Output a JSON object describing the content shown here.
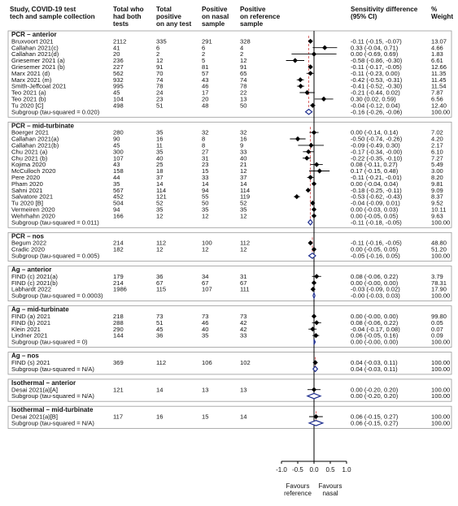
{
  "chart_data": {
    "type": "forest",
    "headers": {
      "study": [
        "Study, COVID-19 test",
        "tech and sample collection"
      ],
      "total_both": [
        "Total who",
        "had both",
        "tests"
      ],
      "total_positive": [
        "Total",
        "positive",
        "on any test"
      ],
      "positive_nasal": [
        "Positive",
        "on nasal",
        "sample"
      ],
      "positive_reference": [
        "Positive",
        "on reference",
        "sample"
      ],
      "sensitivity": [
        "Sensitivity difference",
        "(95% CI)"
      ],
      "weight": [
        "%",
        "Weight"
      ]
    },
    "x_axis": {
      "ticks": [
        -1.0,
        -0.5,
        0.0,
        0.5,
        1.0
      ],
      "tick_labels": [
        "-1.0",
        "-0.5",
        "0.0",
        "0.5",
        "1.0"
      ],
      "xlim": [
        -1.0,
        1.0
      ]
    },
    "favours_left": [
      "Favours",
      "reference"
    ],
    "favours_right": [
      "Favours",
      "nasal"
    ],
    "groups": [
      {
        "title": "PCR – anterior",
        "rows": [
          {
            "study": "Bruxvoort 2021",
            "n": "2112",
            "pos_any": "335",
            "pos_nasal": "291",
            "pos_ref": "328",
            "est": -0.11,
            "lo": -0.15,
            "hi": -0.07,
            "ci_text": "-0.11 (-0.15, -0.07)",
            "weight": "13.07"
          },
          {
            "study": "Callahan 2021(c)",
            "n": "41",
            "pos_any": "6",
            "pos_nasal": "6",
            "pos_ref": "4",
            "est": 0.33,
            "lo": -0.04,
            "hi": 0.71,
            "ci_text": "0.33 (-0.04, 0.71)",
            "weight": "4.66"
          },
          {
            "study": "Callahan 2021(d)",
            "n": "20",
            "pos_any": "2",
            "pos_nasal": "2",
            "pos_ref": "2",
            "est": 0.0,
            "lo": -0.69,
            "hi": 0.69,
            "ci_text": "0.00 (-0.69, 0.69)",
            "weight": "1.83"
          },
          {
            "study": "Griesemer 2021 (a)",
            "n": "236",
            "pos_any": "12",
            "pos_nasal": "5",
            "pos_ref": "12",
            "est": -0.58,
            "lo": -0.86,
            "hi": -0.3,
            "ci_text": "-0.58 (-0.86, -0.30)",
            "weight": "6.61"
          },
          {
            "study": "Griesemer 2021 (b)",
            "n": "227",
            "pos_any": "91",
            "pos_nasal": "81",
            "pos_ref": "91",
            "est": -0.11,
            "lo": -0.17,
            "hi": -0.05,
            "ci_text": "-0.11 (-0.17, -0.05)",
            "weight": "12.66"
          },
          {
            "study": "Marx 2021 (d)",
            "n": "562",
            "pos_any": "70",
            "pos_nasal": "57",
            "pos_ref": "65",
            "est": -0.11,
            "lo": -0.23,
            "hi": 0.0,
            "ci_text": "-0.11 (-0.23, 0.00)",
            "weight": "11.35"
          },
          {
            "study": "Marx 2021 (m)",
            "n": "932",
            "pos_any": "74",
            "pos_nasal": "43",
            "pos_ref": "74",
            "est": -0.42,
            "lo": -0.53,
            "hi": -0.31,
            "ci_text": "-0.42 (-0.53, -0.31)",
            "weight": "11.45"
          },
          {
            "study": "Smith-Jeffcoat 2021",
            "n": "995",
            "pos_any": "78",
            "pos_nasal": "46",
            "pos_ref": "78",
            "est": -0.41,
            "lo": -0.52,
            "hi": -0.3,
            "ci_text": "-0.41 (-0.52, -0.30)",
            "weight": "11.54"
          },
          {
            "study": "Teo 2021 (a)",
            "n": "45",
            "pos_any": "24",
            "pos_nasal": "17",
            "pos_ref": "22",
            "est": -0.21,
            "lo": -0.44,
            "hi": 0.02,
            "ci_text": "-0.21 (-0.44, 0.02)",
            "weight": "7.87"
          },
          {
            "study": "Teo 2021 (b)",
            "n": "104",
            "pos_any": "23",
            "pos_nasal": "20",
            "pos_ref": "13",
            "est": 0.3,
            "lo": 0.02,
            "hi": 0.59,
            "ci_text": "0.30 (0.02, 0.59)",
            "weight": "6.56"
          },
          {
            "study": "Tu 2020 [C]",
            "n": "498",
            "pos_any": "51",
            "pos_nasal": "48",
            "pos_ref": "50",
            "est": -0.04,
            "lo": -0.12,
            "hi": 0.04,
            "ci_text": "-0.04 (-0.12, 0.04)",
            "weight": "12.40"
          }
        ],
        "subgroup": {
          "label": "Subgroup (tau-squared = 0.020)",
          "est": -0.16,
          "lo": -0.26,
          "hi": -0.06,
          "ci_text": "-0.16 (-0.26, -0.06)",
          "weight": "100.00"
        }
      },
      {
        "title": "PCR – mid-turbinate",
        "rows": [
          {
            "study": "Boerger 2021",
            "n": "280",
            "pos_any": "35",
            "pos_nasal": "32",
            "pos_ref": "32",
            "est": 0.0,
            "lo": -0.14,
            "hi": 0.14,
            "ci_text": "0.00 (-0.14, 0.14)",
            "weight": "7.02"
          },
          {
            "study": "Callahan 2021(a)",
            "n": "90",
            "pos_any": "16",
            "pos_nasal": "8",
            "pos_ref": "16",
            "est": -0.5,
            "lo": -0.74,
            "hi": -0.26,
            "ci_text": "-0.50 (-0.74, -0.26)",
            "weight": "4.20"
          },
          {
            "study": "Callahan 2021(b)",
            "n": "45",
            "pos_any": "11",
            "pos_nasal": "8",
            "pos_ref": "9",
            "est": -0.09,
            "lo": -0.49,
            "hi": 0.3,
            "ci_text": "-0.09 (-0.49, 0.30)",
            "weight": "2.17"
          },
          {
            "study": "Chu 2021 (a)",
            "n": "300",
            "pos_any": "35",
            "pos_nasal": "27",
            "pos_ref": "33",
            "est": -0.17,
            "lo": -0.34,
            "hi": 0.0,
            "ci_text": "-0.17 (-0.34, -0.00)",
            "weight": "6.10"
          },
          {
            "study": "Chu 2021 (b)",
            "n": "107",
            "pos_any": "40",
            "pos_nasal": "31",
            "pos_ref": "40",
            "est": -0.22,
            "lo": -0.35,
            "hi": -0.1,
            "ci_text": "-0.22 (-0.35, -0.10)",
            "weight": "7.27"
          },
          {
            "study": "Kojima 2020",
            "n": "43",
            "pos_any": "25",
            "pos_nasal": "23",
            "pos_ref": "21",
            "est": 0.08,
            "lo": -0.11,
            "hi": 0.27,
            "ci_text": "0.08 (-0.11, 0.27)",
            "weight": "5.49"
          },
          {
            "study": "McCulloch 2020",
            "n": "158",
            "pos_any": "18",
            "pos_nasal": "15",
            "pos_ref": "12",
            "est": 0.17,
            "lo": -0.15,
            "hi": 0.48,
            "ci_text": "0.17 (-0.15, 0.48)",
            "weight": "3.00"
          },
          {
            "study": "Pere 2020",
            "n": "44",
            "pos_any": "37",
            "pos_nasal": "33",
            "pos_ref": "37",
            "est": -0.11,
            "lo": -0.21,
            "hi": -0.01,
            "ci_text": "-0.11 (-0.21, -0.01)",
            "weight": "8.20"
          },
          {
            "study": "Pham 2020",
            "n": "35",
            "pos_any": "14",
            "pos_nasal": "14",
            "pos_ref": "14",
            "est": 0.0,
            "lo": -0.04,
            "hi": 0.04,
            "ci_text": "0.00 (-0.04, 0.04)",
            "weight": "9.81"
          },
          {
            "study": "Sahni 2021",
            "n": "567",
            "pos_any": "114",
            "pos_nasal": "94",
            "pos_ref": "114",
            "est": -0.18,
            "lo": -0.25,
            "hi": -0.11,
            "ci_text": "-0.18 (-0.25, -0.11)",
            "weight": "9.09"
          },
          {
            "study": "Salvatore 2021",
            "n": "452",
            "pos_any": "121",
            "pos_nasal": "55",
            "pos_ref": "119",
            "est": -0.53,
            "lo": -0.62,
            "hi": -0.43,
            "ci_text": "-0.53 (-0.62, -0.43)",
            "weight": "8.37"
          },
          {
            "study": "Tu 2020 [B]",
            "n": "504",
            "pos_any": "52",
            "pos_nasal": "50",
            "pos_ref": "52",
            "est": -0.04,
            "lo": -0.09,
            "hi": 0.01,
            "ci_text": "-0.04 (-0.09, 0.01)",
            "weight": "9.52"
          },
          {
            "study": "Vermeiren 2020",
            "n": "94",
            "pos_any": "35",
            "pos_nasal": "35",
            "pos_ref": "35",
            "est": 0.0,
            "lo": -0.03,
            "hi": 0.03,
            "ci_text": "0.00 (-0.03, 0.03)",
            "weight": "10.11"
          },
          {
            "study": "Wehrhahn 2020",
            "n": "166",
            "pos_any": "12",
            "pos_nasal": "12",
            "pos_ref": "12",
            "est": 0.0,
            "lo": -0.05,
            "hi": 0.05,
            "ci_text": "0.00 (-0.05, 0.05)",
            "weight": "9.63"
          }
        ],
        "subgroup": {
          "label": "Subgroup (tau-squared = 0.011)",
          "est": -0.11,
          "lo": -0.18,
          "hi": -0.05,
          "ci_text": "-0.11 (-0.18, -0.05)",
          "weight": "100.00"
        }
      },
      {
        "title": "PCR – nos",
        "rows": [
          {
            "study": "Begum 2022",
            "n": "214",
            "pos_any": "112",
            "pos_nasal": "100",
            "pos_ref": "112",
            "est": -0.11,
            "lo": -0.16,
            "hi": -0.05,
            "ci_text": "-0.11 (-0.16, -0.05)",
            "weight": "48.80"
          },
          {
            "study": "Cradic 2020",
            "n": "182",
            "pos_any": "12",
            "pos_nasal": "12",
            "pos_ref": "12",
            "est": 0.0,
            "lo": -0.05,
            "hi": 0.05,
            "ci_text": "0.00 (-0.05, 0.05)",
            "weight": "51.20"
          }
        ],
        "subgroup": {
          "label": "Subgroup (tau-squared = 0.005)",
          "est": -0.05,
          "lo": -0.16,
          "hi": 0.05,
          "ci_text": "-0.05 (-0.16, 0.05)",
          "weight": "100.00"
        }
      },
      {
        "title": "Ag – anterior",
        "rows": [
          {
            "study": "FIND (c) 2021(a)",
            "n": "179",
            "pos_any": "36",
            "pos_nasal": "34",
            "pos_ref": "31",
            "est": 0.08,
            "lo": -0.06,
            "hi": 0.22,
            "ci_text": "0.08 (-0.06, 0.22)",
            "weight": "3.79"
          },
          {
            "study": "FIND (c) 2021(b)",
            "n": "214",
            "pos_any": "67",
            "pos_nasal": "67",
            "pos_ref": "67",
            "est": 0.0,
            "lo": 0.0,
            "hi": 0.0,
            "ci_text": "0.00 (-0.00, 0.00)",
            "weight": "78.31"
          },
          {
            "study": "Labhardt 2022",
            "n": "1986",
            "pos_any": "115",
            "pos_nasal": "107",
            "pos_ref": "111",
            "est": -0.03,
            "lo": -0.09,
            "hi": 0.02,
            "ci_text": "-0.03 (-0.09, 0.02)",
            "weight": "17.90"
          }
        ],
        "subgroup": {
          "label": "Subgroup (tau-squared = 0.0003)",
          "est": 0.0,
          "lo": -0.03,
          "hi": 0.03,
          "ci_text": "-0.00 (-0.03, 0.03)",
          "weight": "100.00"
        }
      },
      {
        "title": "Ag – mid-turbinate",
        "rows": [
          {
            "study": "FIND (a) 2021",
            "n": "218",
            "pos_any": "73",
            "pos_nasal": "73",
            "pos_ref": "73",
            "est": 0.0,
            "lo": 0.0,
            "hi": 0.0,
            "ci_text": "0.00 (-0.00, 0.00)",
            "weight": "99.80"
          },
          {
            "study": "FIND (b) 2021",
            "n": "288",
            "pos_any": "51",
            "pos_nasal": "46",
            "pos_ref": "42",
            "est": 0.08,
            "lo": -0.06,
            "hi": 0.22,
            "ci_text": "0.08 (-0.06, 0.22)",
            "weight": "0.05"
          },
          {
            "study": "Klein 2021",
            "n": "290",
            "pos_any": "45",
            "pos_nasal": "40",
            "pos_ref": "42",
            "est": -0.04,
            "lo": -0.17,
            "hi": 0.08,
            "ci_text": "-0.04 (-0.17, 0.08)",
            "weight": "0.07"
          },
          {
            "study": "Lindner 2021",
            "n": "144",
            "pos_any": "36",
            "pos_nasal": "35",
            "pos_ref": "33",
            "est": 0.06,
            "lo": -0.05,
            "hi": 0.16,
            "ci_text": "0.06 (-0.05, 0.16)",
            "weight": "0.09"
          }
        ],
        "subgroup": {
          "label": "Subgroup (tau-squared = 0)",
          "est": 0.0,
          "lo": 0.0,
          "hi": 0.0,
          "ci_text": "0.00 (-0.00, 0.00)",
          "weight": "100.00"
        }
      },
      {
        "title": "Ag – nos",
        "rows": [
          {
            "study": "FIND (s) 2021",
            "n": "369",
            "pos_any": "112",
            "pos_nasal": "106",
            "pos_ref": "102",
            "est": 0.04,
            "lo": -0.03,
            "hi": 0.11,
            "ci_text": "0.04 (-0.03, 0.11)",
            "weight": "100.00"
          }
        ],
        "subgroup": {
          "label": "Subgroup (tau-squared = N/A)",
          "est": 0.04,
          "lo": -0.03,
          "hi": 0.11,
          "ci_text": "0.04 (-0.03, 0.11)",
          "weight": "100.00"
        }
      },
      {
        "title": "Isothermal – anterior",
        "rows": [
          {
            "study": "Desai 2021(a)[A]",
            "n": "121",
            "pos_any": "14",
            "pos_nasal": "13",
            "pos_ref": "13",
            "est": 0.0,
            "lo": -0.2,
            "hi": 0.2,
            "ci_text": "0.00 (-0.20, 0.20)",
            "weight": "100.00"
          }
        ],
        "subgroup": {
          "label": "Subgroup (tau-squared = N/A)",
          "est": 0.0,
          "lo": -0.2,
          "hi": 0.2,
          "ci_text": "0.00 (-0.20, 0.20)",
          "weight": "100.00"
        }
      },
      {
        "title": "Isothermal – mid-turbinate",
        "rows": [
          {
            "study": "Desai 2021(a)[B]",
            "n": "117",
            "pos_any": "16",
            "pos_nasal": "15",
            "pos_ref": "14",
            "est": 0.06,
            "lo": -0.15,
            "hi": 0.27,
            "ci_text": "0.06 (-0.15, 0.27)",
            "weight": "100.00"
          }
        ],
        "subgroup": {
          "label": "Subgroup (tau-squared = N/A)",
          "est": 0.06,
          "lo": -0.15,
          "hi": 0.27,
          "ci_text": "0.06 (-0.15, 0.27)",
          "weight": "100.00"
        }
      }
    ],
    "colors": {
      "box_fill": "#ffffff",
      "group_box_stroke": "#9a9a9a",
      "marker": "#000000",
      "diamond": "#1f2f8f",
      "null_line": "#000000",
      "overall_line": "#d04040"
    },
    "grid": false
  }
}
